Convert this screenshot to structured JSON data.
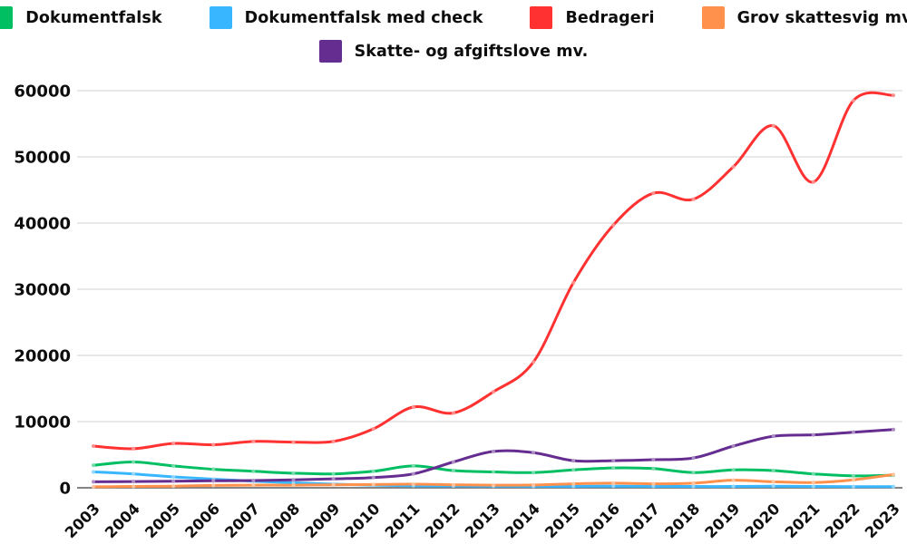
{
  "styles": {
    "background": "#ffffff",
    "grid_color": "#d9d9d9",
    "axis_color": "#737373",
    "text_color": "#0d0d0d"
  },
  "legend": {
    "rows": [
      [
        0,
        1,
        2,
        3
      ],
      [
        4
      ]
    ]
  },
  "chart_data": {
    "type": "line",
    "title": "",
    "xlabel": "",
    "ylabel": "",
    "grid": true,
    "legend_position": "top",
    "ylim": [
      0,
      60000
    ],
    "yticks": [
      0,
      10000,
      20000,
      30000,
      40000,
      50000,
      60000
    ],
    "ytick_labels": [
      "0",
      "10000",
      "20000",
      "30000",
      "40000",
      "50000",
      "60000"
    ],
    "x": [
      "2003",
      "2004",
      "2005",
      "2006",
      "2007",
      "2008",
      "2009",
      "2010",
      "2011",
      "2012",
      "2013",
      "2014",
      "2015",
      "2016",
      "2017",
      "2018",
      "2019",
      "2020",
      "2021",
      "2022",
      "2023"
    ],
    "series": [
      {
        "name": "Dokumentfalsk",
        "color": "#00BF63",
        "values": [
          3400,
          3900,
          3300,
          2800,
          2500,
          2200,
          2100,
          2500,
          3300,
          2600,
          2400,
          2300,
          2700,
          3000,
          2900,
          2300,
          2700,
          2600,
          2100,
          1800,
          1900
        ]
      },
      {
        "name": "Dokumentfalsk med check",
        "color": "#38B6FF",
        "values": [
          2400,
          2100,
          1650,
          1300,
          1000,
          750,
          550,
          400,
          300,
          280,
          250,
          220,
          220,
          250,
          220,
          200,
          200,
          250,
          200,
          180,
          170
        ]
      },
      {
        "name": "Bedrageri",
        "color": "#FF3131",
        "values": [
          6300,
          5900,
          6700,
          6500,
          7000,
          6900,
          7000,
          8900,
          12200,
          11300,
          14500,
          19000,
          31000,
          39700,
          44500,
          43600,
          48500,
          54700,
          46200,
          58500,
          59300
        ]
      },
      {
        "name": "Grov skattesvig mv.",
        "color": "#FF914D",
        "values": [
          150,
          200,
          250,
          350,
          400,
          400,
          450,
          500,
          550,
          450,
          400,
          420,
          600,
          700,
          600,
          700,
          1150,
          900,
          800,
          1200,
          2000
        ]
      },
      {
        "name": "Skatte- og afgiftslove mv.",
        "color": "#662D91",
        "values": [
          900,
          950,
          1000,
          1050,
          1100,
          1200,
          1350,
          1550,
          2100,
          3900,
          5500,
          5300,
          4100,
          4100,
          4250,
          4500,
          6300,
          7800,
          8000,
          8400,
          8800
        ]
      }
    ]
  }
}
